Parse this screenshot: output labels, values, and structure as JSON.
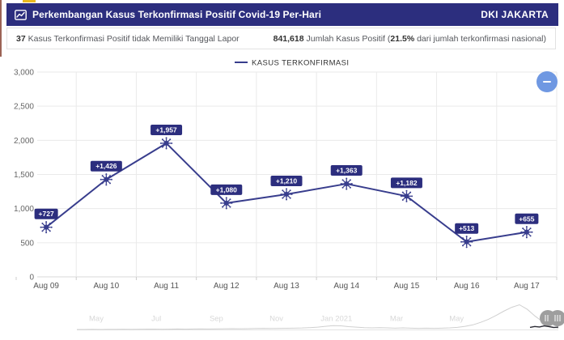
{
  "header": {
    "title": "Perkembangan Kasus Terkonfirmasi Positif Covid-19 Per-Hari",
    "region": "DKI JAKARTA"
  },
  "subheader": {
    "no_date_value": "37",
    "no_date_label": " Kasus Terkonfirmasi Positif tidak Memiliki Tanggal Lapor",
    "total_value": "841,618",
    "total_label": " Jumlah Kasus Positif (",
    "pct": "21.5%",
    "pct_suffix": " dari jumlah terkonfirmasi nasional)"
  },
  "colors": {
    "navy": "#2c2e7e",
    "line": "#383d8d",
    "grid": "#eaeaea",
    "zero_line": "#d8d8d8",
    "axis_text": "#666666",
    "button_blue": "#6f98e2",
    "nav_gray": "#d0d0d0",
    "nav_label": "#d8d8d8",
    "handle_gray": "#9e9e9e",
    "selected_dark": "#2a2a33"
  },
  "chart_data": [
    {
      "type": "line",
      "title": "",
      "xlabel": "",
      "ylabel": "",
      "legend": [
        "KASUS TERKONFIRMASI"
      ],
      "legend_position": "top-center",
      "grid": true,
      "categories": [
        "Aug 09",
        "Aug 10",
        "Aug 11",
        "Aug 12",
        "Aug 13",
        "Aug 14",
        "Aug 15",
        "Aug 16",
        "Aug 17"
      ],
      "values": [
        727,
        1426,
        1957,
        1080,
        1210,
        1363,
        1182,
        513,
        655
      ],
      "point_labels": [
        "+727",
        "+1,426",
        "+1,957",
        "+1,080",
        "+1,210",
        "+1,363",
        "+1,182",
        "+513",
        "+655"
      ],
      "ylim": [
        0,
        3000
      ],
      "yticks": [
        0,
        500,
        1000,
        1500,
        2000,
        2500,
        3000
      ],
      "ytick_labels": [
        "0",
        "500",
        "1,000",
        "1,500",
        "2,000",
        "2,500",
        "3,000"
      ]
    },
    {
      "type": "area",
      "role": "navigator",
      "x_labels": [
        "May",
        "Jul",
        "Sep",
        "Nov",
        "Jan 2021",
        "Mar",
        "May"
      ],
      "values": [
        0.015,
        0.015,
        0.02,
        0.015,
        0.02,
        0.02,
        0.025,
        0.02,
        0.025,
        0.03,
        0.03,
        0.025,
        0.03,
        0.035,
        0.03,
        0.035,
        0.04,
        0.035,
        0.04,
        0.045,
        0.05,
        0.045,
        0.05,
        0.055,
        0.06,
        0.055,
        0.06,
        0.065,
        0.07,
        0.075,
        0.09,
        0.11,
        0.14,
        0.17,
        0.16,
        0.13,
        0.11,
        0.09,
        0.08,
        0.09,
        0.08,
        0.07,
        0.08,
        0.07,
        0.06,
        0.07,
        0.06,
        0.07,
        0.08,
        0.1,
        0.14,
        0.2,
        0.3,
        0.42,
        0.58,
        0.75,
        0.9,
        1.0,
        0.82,
        0.55,
        0.32,
        0.14,
        0.06
      ],
      "selected_values": [
        0.035,
        0.07,
        0.05,
        0.095,
        0.065,
        0.03,
        0.045
      ]
    }
  ]
}
